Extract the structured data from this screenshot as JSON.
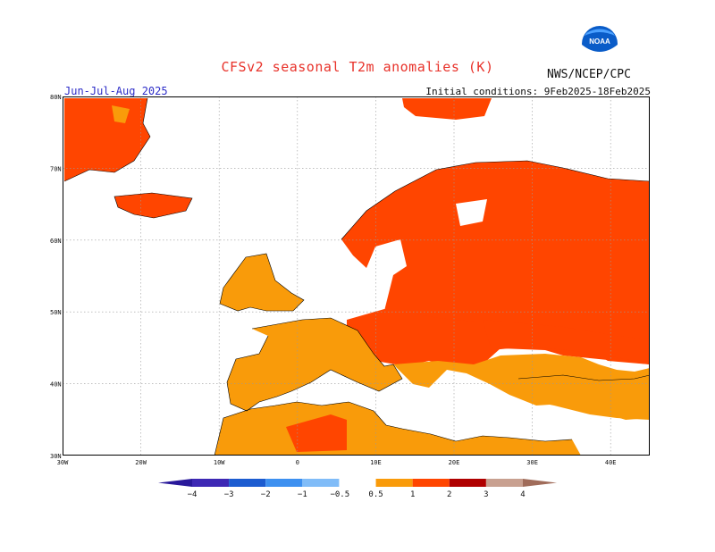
{
  "title": "CFSv2 seasonal T2m anomalies (K)",
  "organization": "NWS/NCEP/CPC",
  "season": "Jun-Jul-Aug 2025",
  "initial_conditions": "Initial conditions: 9Feb2025-18Feb2025",
  "logo": {
    "icon": "noaa-logo",
    "text": "NOAA"
  },
  "map": {
    "lon_range": [
      -30,
      45
    ],
    "lat_range": [
      30,
      80
    ],
    "lat_ticks": [
      "30N",
      "40N",
      "50N",
      "60N",
      "70N",
      "80N"
    ],
    "lon_ticks": [
      "30W",
      "20W",
      "10W",
      "0",
      "10E",
      "20E",
      "30E",
      "40E"
    ],
    "grid": true,
    "colors": {
      "water": "#ffffff",
      "coast": "#000000",
      "grid": "#999999"
    }
  },
  "colorbar": {
    "labels": [
      "−4",
      "−3",
      "−2",
      "−1",
      "−0.5",
      "0.5",
      "1",
      "2",
      "3",
      "4"
    ],
    "bins": [
      {
        "from": -4,
        "to": -3,
        "color": "#3d28b4"
      },
      {
        "from": -3,
        "to": -2,
        "color": "#1c5cd0"
      },
      {
        "from": -2,
        "to": -1,
        "color": "#3d90f0"
      },
      {
        "from": -1,
        "to": -0.5,
        "color": "#80bcf8"
      },
      {
        "from": -0.5,
        "to": 0.5,
        "color": "#ffffff"
      },
      {
        "from": 0.5,
        "to": 1,
        "color": "#f99b0a"
      },
      {
        "from": 1,
        "to": 2,
        "color": "#ff4500"
      },
      {
        "from": 2,
        "to": 3,
        "color": "#b00000"
      },
      {
        "from": 3,
        "to": 4,
        "color": "#c8a090"
      }
    ],
    "low_end_color": "#28189a",
    "high_end_color": "#a06c5a"
  }
}
